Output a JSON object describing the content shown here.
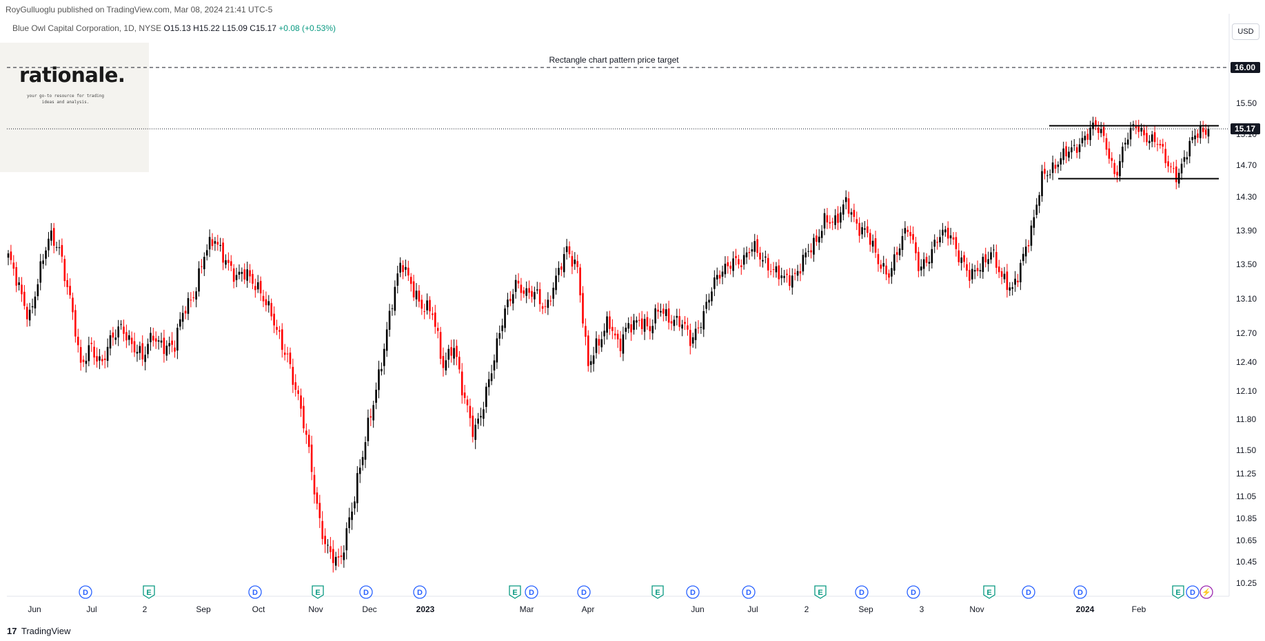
{
  "header": {
    "published": "RoyGulluoglu published on TradingView.com, Mar 08, 2024 21:41 UTC-5"
  },
  "legend": {
    "symbol": "Blue Owl Capital Corporation, 1D, NYSE",
    "open": "O15.13",
    "high": "H15.22",
    "low": "L15.09",
    "close": "C15.17",
    "change": "+0.08 (+0.53%)"
  },
  "logo": {
    "brand": "rationale.",
    "tagline_1": "your go-to resource for trading",
    "tagline_2": "ideas and analysis."
  },
  "currency_button": "USD",
  "footer": {
    "brand": "TradingView",
    "mark": "17"
  },
  "colors": {
    "up": "#089981",
    "down": "#f23645",
    "candle_up": "#000000",
    "candle_down": "#ff0000",
    "dividend": "#2962ff",
    "earnings": "#089981",
    "split": "#9c27b0"
  },
  "chart_data": {
    "type": "candlestick",
    "symbol": "Blue Owl Capital Corporation",
    "interval": "1D",
    "exchange": "NYSE",
    "currency": "USD",
    "ylim": [
      10.1,
      16.35
    ],
    "y_ticks": [
      "16.00",
      "15.50",
      "15.10",
      "14.70",
      "14.30",
      "13.90",
      "13.50",
      "13.10",
      "12.70",
      "12.40",
      "12.10",
      "11.80",
      "11.50",
      "11.25",
      "11.05",
      "10.85",
      "10.65",
      "10.45",
      "10.25"
    ],
    "x_ticks": [
      "Jun",
      "Jul",
      "2",
      "Sep",
      "Oct",
      "Nov",
      "Dec",
      "2023",
      "Mar",
      "Apr",
      "Jun",
      "Jul",
      "2",
      "Sep",
      "3",
      "Nov",
      "2024",
      "Feb"
    ],
    "x_ticks_bold": [
      "2023",
      "2024"
    ],
    "last_price": {
      "value": 15.17,
      "label": "15.17"
    },
    "price_target": {
      "value": 16.0,
      "label": "16.00",
      "annotation": "Rectangle chart pattern price target"
    },
    "rectangle_pattern": {
      "resistance": 15.21,
      "support": 14.53
    },
    "approx_closes": [
      13.6,
      13.2,
      12.9,
      13.4,
      13.8,
      13.7,
      13.1,
      12.3,
      12.6,
      12.4,
      12.6,
      12.8,
      12.6,
      12.4,
      12.7,
      12.6,
      12.5,
      13.0,
      13.2,
      13.6,
      13.8,
      13.6,
      13.3,
      13.4,
      13.3,
      13.0,
      12.7,
      12.5,
      12.0,
      11.5,
      10.9,
      10.5,
      10.4,
      10.9,
      11.3,
      11.8,
      12.4,
      13.0,
      13.5,
      13.3,
      13.0,
      12.9,
      12.4,
      12.6,
      12.0,
      11.7,
      12.0,
      12.4,
      13.0,
      13.3,
      13.1,
      13.2,
      13.0,
      13.3,
      13.7,
      13.5,
      12.3,
      12.6,
      12.9,
      12.5,
      12.8,
      12.9,
      12.7,
      13.0,
      12.9,
      12.8,
      12.6,
      12.9,
      13.2,
      13.4,
      13.6,
      13.5,
      13.7,
      13.6,
      13.4,
      13.3,
      13.4,
      13.6,
      13.7,
      14.1,
      14.0,
      14.2,
      14.0,
      13.9,
      13.5,
      13.4,
      13.7,
      13.9,
      13.5,
      13.6,
      13.8,
      13.9,
      13.6,
      13.3,
      13.5,
      13.7,
      13.3,
      13.2,
      13.6,
      13.9,
      14.6,
      14.7,
      14.8,
      14.9,
      15.1,
      15.2,
      15.0,
      14.6,
      15.0,
      15.2,
      15.1,
      15.0,
      14.7,
      14.6,
      14.9,
      15.1,
      15.17
    ],
    "events": [
      {
        "type": "D",
        "label": "D"
      },
      {
        "type": "E",
        "label": "E"
      },
      {
        "type": "D",
        "label": "D"
      },
      {
        "type": "E",
        "label": "E"
      },
      {
        "type": "D",
        "label": "D"
      },
      {
        "type": "D",
        "label": "D"
      },
      {
        "type": "E",
        "label": "E"
      },
      {
        "type": "D",
        "label": "D"
      },
      {
        "type": "D",
        "label": "D"
      },
      {
        "type": "E",
        "label": "E"
      },
      {
        "type": "D",
        "label": "D"
      },
      {
        "type": "D",
        "label": "D"
      },
      {
        "type": "E",
        "label": "E"
      },
      {
        "type": "D",
        "label": "D"
      },
      {
        "type": "D",
        "label": "D"
      },
      {
        "type": "E",
        "label": "E"
      },
      {
        "type": "D",
        "label": "D"
      },
      {
        "type": "D",
        "label": "D"
      },
      {
        "type": "E",
        "label": "E"
      },
      {
        "type": "D",
        "label": "D"
      },
      {
        "type": "S",
        "label": "⚡"
      }
    ]
  }
}
